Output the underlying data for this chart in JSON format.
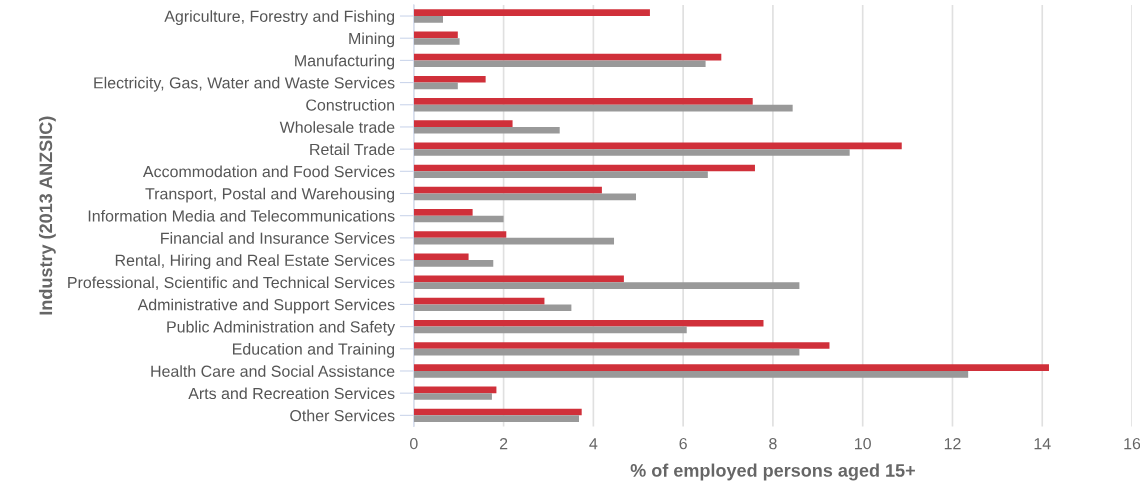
{
  "chart_data": {
    "type": "bar",
    "orientation": "horizontal",
    "xlabel": "% of employed persons aged 15+",
    "ylabel": "Industry (2013 ANZSIC)",
    "categories": [
      "Agriculture, Forestry and Fishing",
      "Mining",
      "Manufacturing",
      "Electricity, Gas, Water and Waste Services",
      "Construction",
      "Wholesale trade",
      "Retail Trade",
      "Accommodation and Food Services",
      "Transport, Postal and Warehousing",
      "Information Media and Telecommunications",
      "Financial and Insurance Services",
      "Rental, Hiring and Real Estate Services",
      "Professional, Scientific and Technical Services",
      "Administrative and Support Services",
      "Public Administration and Safety",
      "Education and Training",
      "Health Care and Social Assistance",
      "Arts and Recreation Services",
      "Other Services"
    ],
    "series": [
      {
        "color": "#d0303a",
        "values": [
          5.26,
          0.98,
          6.85,
          1.6,
          7.55,
          2.2,
          10.87,
          7.6,
          4.19,
          1.31,
          2.06,
          1.22,
          4.68,
          2.91,
          7.79,
          9.26,
          14.15,
          1.84,
          3.74
        ]
      },
      {
        "color": "#999999",
        "values": [
          0.65,
          1.02,
          6.5,
          0.98,
          8.44,
          3.25,
          9.71,
          6.55,
          4.95,
          2.0,
          4.46,
          1.77,
          8.59,
          3.51,
          6.08,
          8.59,
          12.35,
          1.74,
          3.68
        ]
      }
    ],
    "xlim": [
      0,
      16
    ],
    "xticks": [
      0,
      2,
      4,
      6,
      8,
      10,
      12,
      14,
      16
    ],
    "grid": "x"
  }
}
